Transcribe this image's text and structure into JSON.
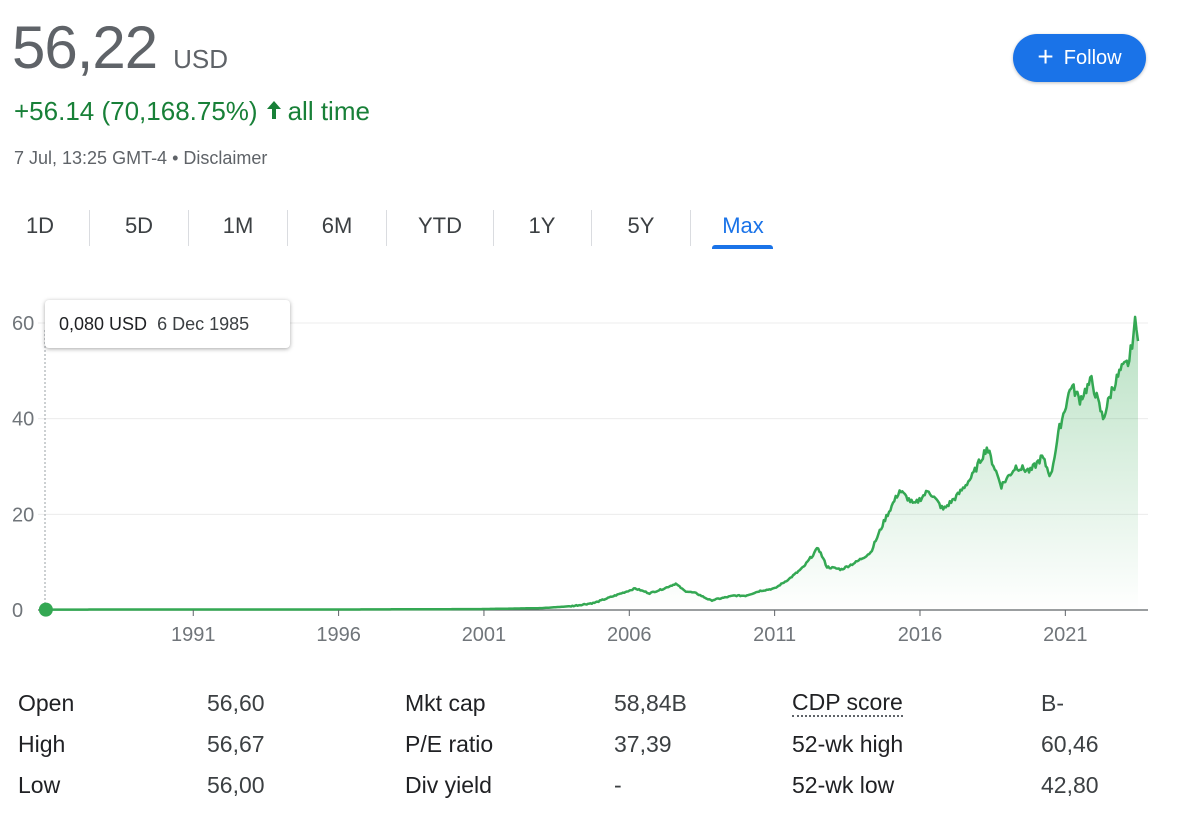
{
  "quote": {
    "price": "56,22",
    "currency": "USD",
    "change": "+56.14 (70,168.75%)",
    "change_period": "all time",
    "timestamp": "7 Jul, 13:25 GMT-4 • Disclaimer",
    "follow_label": "Follow"
  },
  "tabs": [
    "1D",
    "5D",
    "1M",
    "6M",
    "YTD",
    "1Y",
    "5Y",
    "Max"
  ],
  "active_tab": "Max",
  "tooltip": {
    "value": "0,080 USD",
    "date": "6 Dec 1985"
  },
  "colors": {
    "line": "#34a853",
    "up": "#188038",
    "accent": "#1a73e8"
  },
  "chart_data": {
    "type": "area",
    "x_ticks": [
      "1991",
      "1996",
      "2001",
      "2006",
      "2011",
      "2016",
      "2021"
    ],
    "y_ticks": [
      "0",
      "20",
      "40",
      "60"
    ],
    "ylim": [
      0,
      60
    ],
    "xlim": [
      1985.9,
      2023.5
    ],
    "grid": true,
    "series": [
      {
        "x": [
          1985.93,
          1988,
          1991,
          1996,
          2001,
          2003,
          2004,
          2004.8,
          2005.5,
          2006.2,
          2006.7,
          2007.2,
          2007.6,
          2007.9,
          2008.3,
          2008.8,
          2009.2,
          2009.6,
          2010,
          2010.5,
          2011,
          2011.5,
          2012,
          2012.5,
          2012.8,
          2013.3,
          2013.8,
          2014.3,
          2014.8,
          2015.3,
          2015.8,
          2016.3,
          2016.8,
          2017.3,
          2017.8,
          2018.3,
          2018.8,
          2019.3,
          2019.8,
          2020.2,
          2020.5,
          2020.8,
          2021.2,
          2021.5,
          2021.9,
          2022.3,
          2022.6,
          2022.9,
          2023.2,
          2023.4,
          2023.5
        ],
        "y": [
          0.08,
          0.1,
          0.1,
          0.1,
          0.2,
          0.4,
          0.8,
          1.5,
          3,
          4.5,
          3.5,
          4.5,
          5.5,
          4,
          3.5,
          2,
          2.5,
          3,
          3,
          4,
          4.5,
          6.5,
          9,
          13,
          9,
          8.5,
          10,
          12,
          19,
          25,
          22,
          25,
          21,
          24,
          28,
          34,
          26,
          30,
          29,
          32,
          28,
          38,
          47,
          44,
          48,
          40,
          46,
          50,
          52,
          60,
          56.22
        ]
      }
    ]
  },
  "stats": [
    {
      "label": "Open",
      "value": "56,60"
    },
    {
      "label": "High",
      "value": "56,67"
    },
    {
      "label": "Low",
      "value": "56,00"
    },
    {
      "label": "Mkt cap",
      "value": "58,84B"
    },
    {
      "label": "P/E ratio",
      "value": "37,39"
    },
    {
      "label": "Div yield",
      "value": "-"
    },
    {
      "label": "CDP score",
      "value": "B-"
    },
    {
      "label": "52-wk high",
      "value": "60,46"
    },
    {
      "label": "52-wk low",
      "value": "42,80"
    }
  ]
}
